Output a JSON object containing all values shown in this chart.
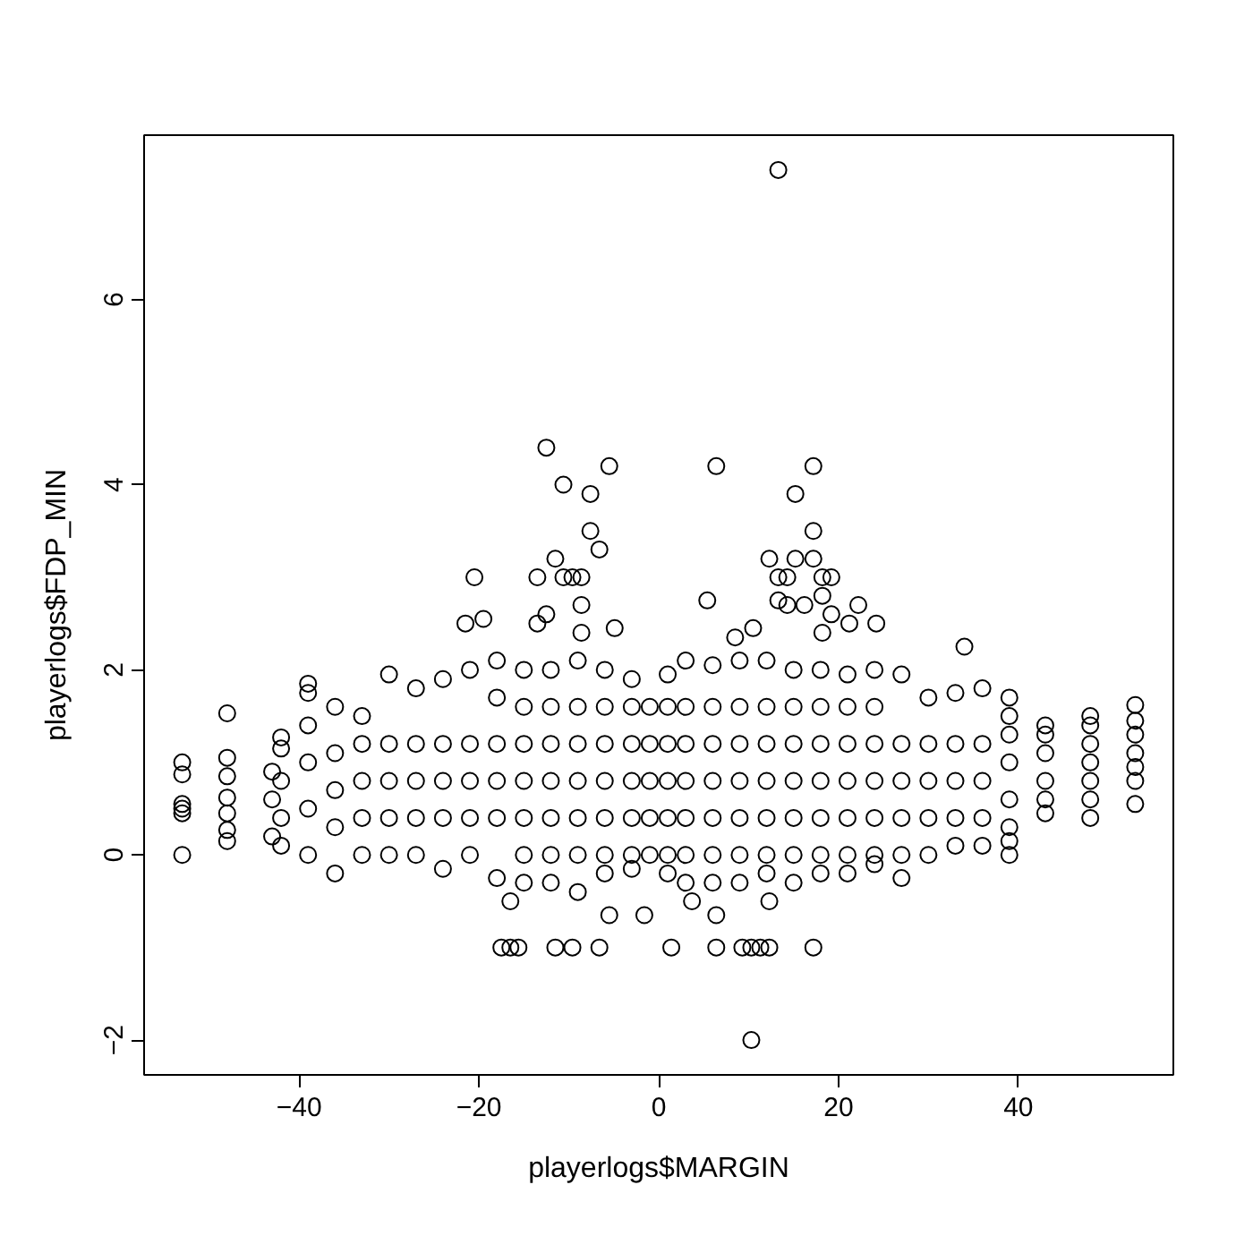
{
  "chart_data": {
    "type": "scatter",
    "xlabel": "playerlogs$MARGIN",
    "ylabel": "playerlogs$FDP_MIN",
    "xlim": [
      -57.24,
      57.24
    ],
    "ylim": [
      -2.376,
      7.776
    ],
    "xticks": [
      -40,
      -20,
      0,
      20,
      40
    ],
    "yticks": [
      -2,
      0,
      2,
      4,
      6
    ],
    "grid": false,
    "marker": "circle",
    "series": [
      {
        "color": "#000000",
        "x": [
          -53,
          -53,
          -53,
          -53,
          -53,
          -53,
          -48,
          -48,
          -48,
          -48,
          -48,
          -48,
          -48,
          -43,
          -43,
          -43,
          -42,
          -42,
          -42,
          -42,
          -42,
          -39,
          -39,
          -39,
          -39,
          -39,
          -39,
          -36,
          -36,
          -36,
          -36,
          -36,
          -33,
          -33,
          -33,
          -33,
          -33,
          -30,
          -30,
          -30,
          -30,
          -30,
          -27,
          -27,
          -27,
          -27,
          -27,
          -24,
          -24,
          -24,
          -24,
          -24,
          -21,
          -21,
          -21,
          -21,
          -21,
          -18,
          -18,
          -18,
          -18,
          -18,
          -18,
          -15,
          -15,
          -15,
          -15,
          -15,
          -15,
          -15,
          -12,
          -12,
          -12,
          -12,
          -12,
          -12,
          -12,
          -9,
          -9,
          -9,
          -9,
          -9,
          -9,
          -9,
          -6,
          -6,
          -6,
          -6,
          -6,
          -6,
          -6,
          -3,
          -3,
          -3,
          -3,
          -3,
          -3,
          -3,
          -1,
          -1,
          -1,
          -1,
          -1,
          1,
          1,
          1,
          1,
          1,
          1,
          1,
          3,
          3,
          3,
          3,
          3,
          3,
          3,
          6,
          6,
          6,
          6,
          6,
          6,
          6,
          9,
          9,
          9,
          9,
          9,
          9,
          9,
          12,
          12,
          12,
          12,
          12,
          12,
          12,
          15,
          15,
          15,
          15,
          15,
          15,
          15,
          18,
          18,
          18,
          18,
          18,
          18,
          18,
          21,
          21,
          21,
          21,
          21,
          21,
          21,
          24,
          24,
          24,
          24,
          24,
          24,
          24,
          27,
          27,
          27,
          27,
          27,
          27,
          30,
          30,
          30,
          30,
          30,
          33,
          33,
          33,
          33,
          33,
          36,
          36,
          36,
          36,
          36,
          39,
          39,
          39,
          39,
          39,
          39,
          39,
          39,
          43,
          43,
          43,
          43,
          43,
          43,
          48,
          48,
          48,
          48,
          48,
          48,
          48,
          53,
          53,
          53,
          53,
          53,
          53,
          53,
          -12.5,
          -10.6,
          -5.5,
          -7.6,
          -7.6,
          -6.6,
          -11.5,
          -20.5,
          -13.5,
          -10.6,
          -9.6,
          -8.6,
          -8.6,
          -8.6,
          -12.5,
          -13.5,
          -21.5,
          -19.5,
          -4.9,
          -17.5,
          -16.5,
          -15.6,
          -11.5,
          -9.6,
          -6.6,
          -5.5,
          -16.5,
          13.3,
          6.4,
          17.2,
          15.2,
          17.2,
          12.3,
          15.2,
          17.2,
          13.3,
          14.3,
          18.2,
          19.2,
          13.3,
          14.3,
          16.2,
          18.2,
          19.2,
          22.2,
          21.2,
          24.2,
          18.2,
          5.4,
          8.5,
          10.5,
          34.0,
          10.3,
          1.4,
          6.4,
          9.3,
          10.3,
          11.3,
          12.3,
          17.2,
          -1.6,
          3.7,
          6.4,
          12.3
        ],
        "values": [
          1.0,
          0.87,
          0.55,
          0.5,
          0.45,
          0,
          1.53,
          1.05,
          0.85,
          0.62,
          0.45,
          0.27,
          0.15,
          0.9,
          0.6,
          0.2,
          1.27,
          1.15,
          0.8,
          0.4,
          0.1,
          1.85,
          1.75,
          1.4,
          1.0,
          0.5,
          0,
          -0.2,
          0.3,
          0.7,
          1.1,
          1.6,
          0,
          0.4,
          0.8,
          1.2,
          1.5,
          0,
          0.4,
          0.8,
          1.2,
          1.95,
          0,
          0.4,
          0.8,
          1.2,
          1.8,
          -0.15,
          0.4,
          0.8,
          1.2,
          1.9,
          0,
          0.4,
          0.8,
          1.2,
          2.0,
          -0.25,
          0.4,
          0.8,
          1.2,
          1.7,
          2.1,
          -0.3,
          0,
          0.4,
          0.8,
          1.2,
          1.6,
          2.0,
          -0.3,
          0,
          0.4,
          0.8,
          1.2,
          1.6,
          2.0,
          -0.4,
          0,
          0.4,
          0.8,
          1.2,
          1.6,
          2.1,
          -0.2,
          0,
          0.4,
          0.8,
          1.2,
          1.6,
          2.0,
          -0.15,
          0,
          0.4,
          0.8,
          1.2,
          1.6,
          1.9,
          0,
          0.4,
          0.8,
          1.2,
          1.6,
          -0.2,
          0,
          0.4,
          0.8,
          1.2,
          1.6,
          1.95,
          -0.3,
          0,
          0.4,
          0.8,
          1.2,
          1.6,
          2.1,
          -0.3,
          0,
          0.4,
          0.8,
          1.2,
          1.6,
          2.05,
          -0.3,
          0,
          0.4,
          0.8,
          1.2,
          1.6,
          2.1,
          -0.2,
          0,
          0.4,
          0.8,
          1.2,
          1.6,
          2.1,
          -0.3,
          0,
          0.4,
          0.8,
          1.2,
          1.6,
          2.0,
          -0.2,
          0,
          0.4,
          0.8,
          1.2,
          1.6,
          2.0,
          -0.2,
          0,
          0.4,
          0.8,
          1.2,
          1.6,
          1.95,
          -0.1,
          0,
          0.4,
          0.8,
          1.2,
          1.6,
          2.0,
          -0.25,
          0,
          0.4,
          0.8,
          1.2,
          1.95,
          0,
          0.4,
          0.8,
          1.2,
          1.7,
          0.1,
          0.4,
          0.8,
          1.2,
          1.75,
          0.1,
          0.4,
          0.8,
          1.2,
          1.8,
          0,
          0.15,
          0.3,
          0.6,
          1.0,
          1.3,
          1.5,
          1.7,
          0.45,
          0.6,
          0.8,
          1.1,
          1.3,
          1.4,
          0.4,
          0.6,
          0.8,
          1.0,
          1.2,
          1.4,
          1.5,
          0.55,
          0.8,
          0.95,
          1.1,
          1.3,
          1.45,
          1.62,
          4.4,
          4.0,
          4.2,
          3.9,
          3.5,
          3.3,
          3.2,
          3.0,
          3.0,
          3.0,
          3.0,
          3.0,
          2.7,
          2.4,
          2.6,
          2.5,
          2.5,
          2.55,
          2.45,
          -1,
          -1,
          -1,
          -1,
          -1,
          -1,
          -0.65,
          -0.5,
          7.4,
          4.2,
          4.2,
          3.9,
          3.5,
          3.2,
          3.2,
          3.2,
          3.0,
          3.0,
          3.0,
          3.0,
          2.75,
          2.7,
          2.7,
          2.8,
          2.6,
          2.7,
          2.5,
          2.5,
          2.4,
          2.75,
          2.35,
          2.45,
          2.25,
          -2,
          -1,
          -1,
          -1,
          -1,
          -1,
          -1,
          -1,
          -0.65,
          -0.5,
          -0.65,
          -0.5
        ]
      }
    ]
  }
}
